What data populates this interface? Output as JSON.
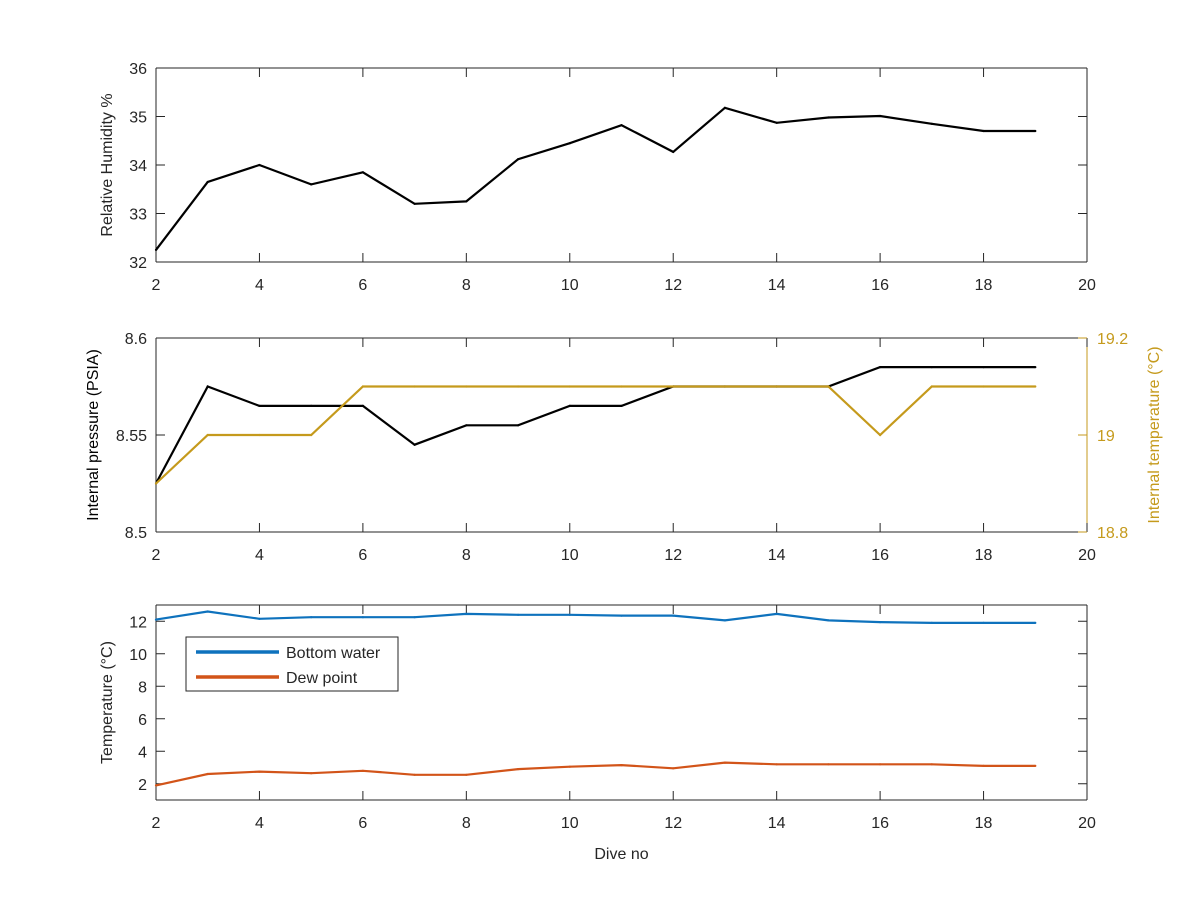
{
  "colors": {
    "black": "#000000",
    "gold": "#C59A1C",
    "blue": "#0E72BD",
    "orange": "#D25419",
    "axis": "#262626"
  },
  "chart_data": [
    {
      "type": "line",
      "xlabel": "",
      "ylabel": "Relative Humidity %",
      "xlim": [
        2,
        20
      ],
      "ylim": [
        32,
        36
      ],
      "xticks": [
        "2",
        "4",
        "6",
        "8",
        "10",
        "12",
        "14",
        "16",
        "18",
        "20"
      ],
      "yticks": [
        "32",
        "33",
        "34",
        "35",
        "36"
      ],
      "x": [
        2,
        3,
        4,
        5,
        6,
        7,
        8,
        9,
        10,
        11,
        12,
        13,
        14,
        15,
        16,
        17,
        18,
        19
      ],
      "series": [
        {
          "color": "#000000",
          "values": [
            32.25,
            33.65,
            34.0,
            33.6,
            33.85,
            33.2,
            33.25,
            34.12,
            34.45,
            34.82,
            34.27,
            35.18,
            34.87,
            34.98,
            35.01,
            34.85,
            34.7,
            34.7
          ]
        }
      ]
    },
    {
      "type": "line",
      "xlabel": "",
      "ylabel": "Internal pressure (PSIA)",
      "y2label": "Internal temperature (°C)",
      "xlim": [
        2,
        20
      ],
      "ylim": [
        8.5,
        8.6
      ],
      "y2lim": [
        18.8,
        19.2
      ],
      "xticks": [
        "2",
        "4",
        "6",
        "8",
        "10",
        "12",
        "14",
        "16",
        "18",
        "20"
      ],
      "yticks": [
        "8.5",
        "8.55",
        "8.6"
      ],
      "y2ticks": [
        "18.8",
        "19",
        "19.2"
      ],
      "x": [
        2,
        3,
        4,
        5,
        6,
        7,
        8,
        9,
        10,
        11,
        12,
        13,
        14,
        15,
        16,
        17,
        18,
        19
      ],
      "series": [
        {
          "axis": "left",
          "color": "#000000",
          "values": [
            8.525,
            8.575,
            8.565,
            8.565,
            8.565,
            8.545,
            8.555,
            8.555,
            8.565,
            8.565,
            8.575,
            8.575,
            8.575,
            8.575,
            8.585,
            8.585,
            8.585,
            8.585
          ]
        },
        {
          "axis": "right",
          "color": "#C59A1C",
          "values": [
            18.9,
            19.0,
            19.0,
            19.0,
            19.1,
            19.1,
            19.1,
            19.1,
            19.1,
            19.1,
            19.1,
            19.1,
            19.1,
            19.1,
            19.0,
            19.1,
            19.1,
            19.1
          ]
        }
      ]
    },
    {
      "type": "line",
      "xlabel": "Dive no",
      "ylabel": "Temperature (°C)",
      "xlim": [
        2,
        20
      ],
      "ylim": [
        1,
        13
      ],
      "xticks": [
        "2",
        "4",
        "6",
        "8",
        "10",
        "12",
        "14",
        "16",
        "18",
        "20"
      ],
      "yticks": [
        "2",
        "4",
        "6",
        "8",
        "10",
        "12"
      ],
      "legend_position": "top-left",
      "x": [
        2,
        3,
        4,
        5,
        6,
        7,
        8,
        9,
        10,
        11,
        12,
        13,
        14,
        15,
        16,
        17,
        18,
        19
      ],
      "series": [
        {
          "name": "Bottom water",
          "color": "#0E72BD",
          "values": [
            12.1,
            12.6,
            12.15,
            12.25,
            12.25,
            12.25,
            12.45,
            12.4,
            12.4,
            12.35,
            12.35,
            12.05,
            12.45,
            12.05,
            11.95,
            11.9,
            11.9,
            11.9
          ]
        },
        {
          "name": "Dew point",
          "color": "#D25419",
          "values": [
            1.9,
            2.6,
            2.75,
            2.65,
            2.8,
            2.55,
            2.55,
            2.9,
            3.05,
            3.15,
            2.95,
            3.3,
            3.2,
            3.2,
            3.2,
            3.2,
            3.1,
            3.1
          ]
        }
      ]
    }
  ]
}
